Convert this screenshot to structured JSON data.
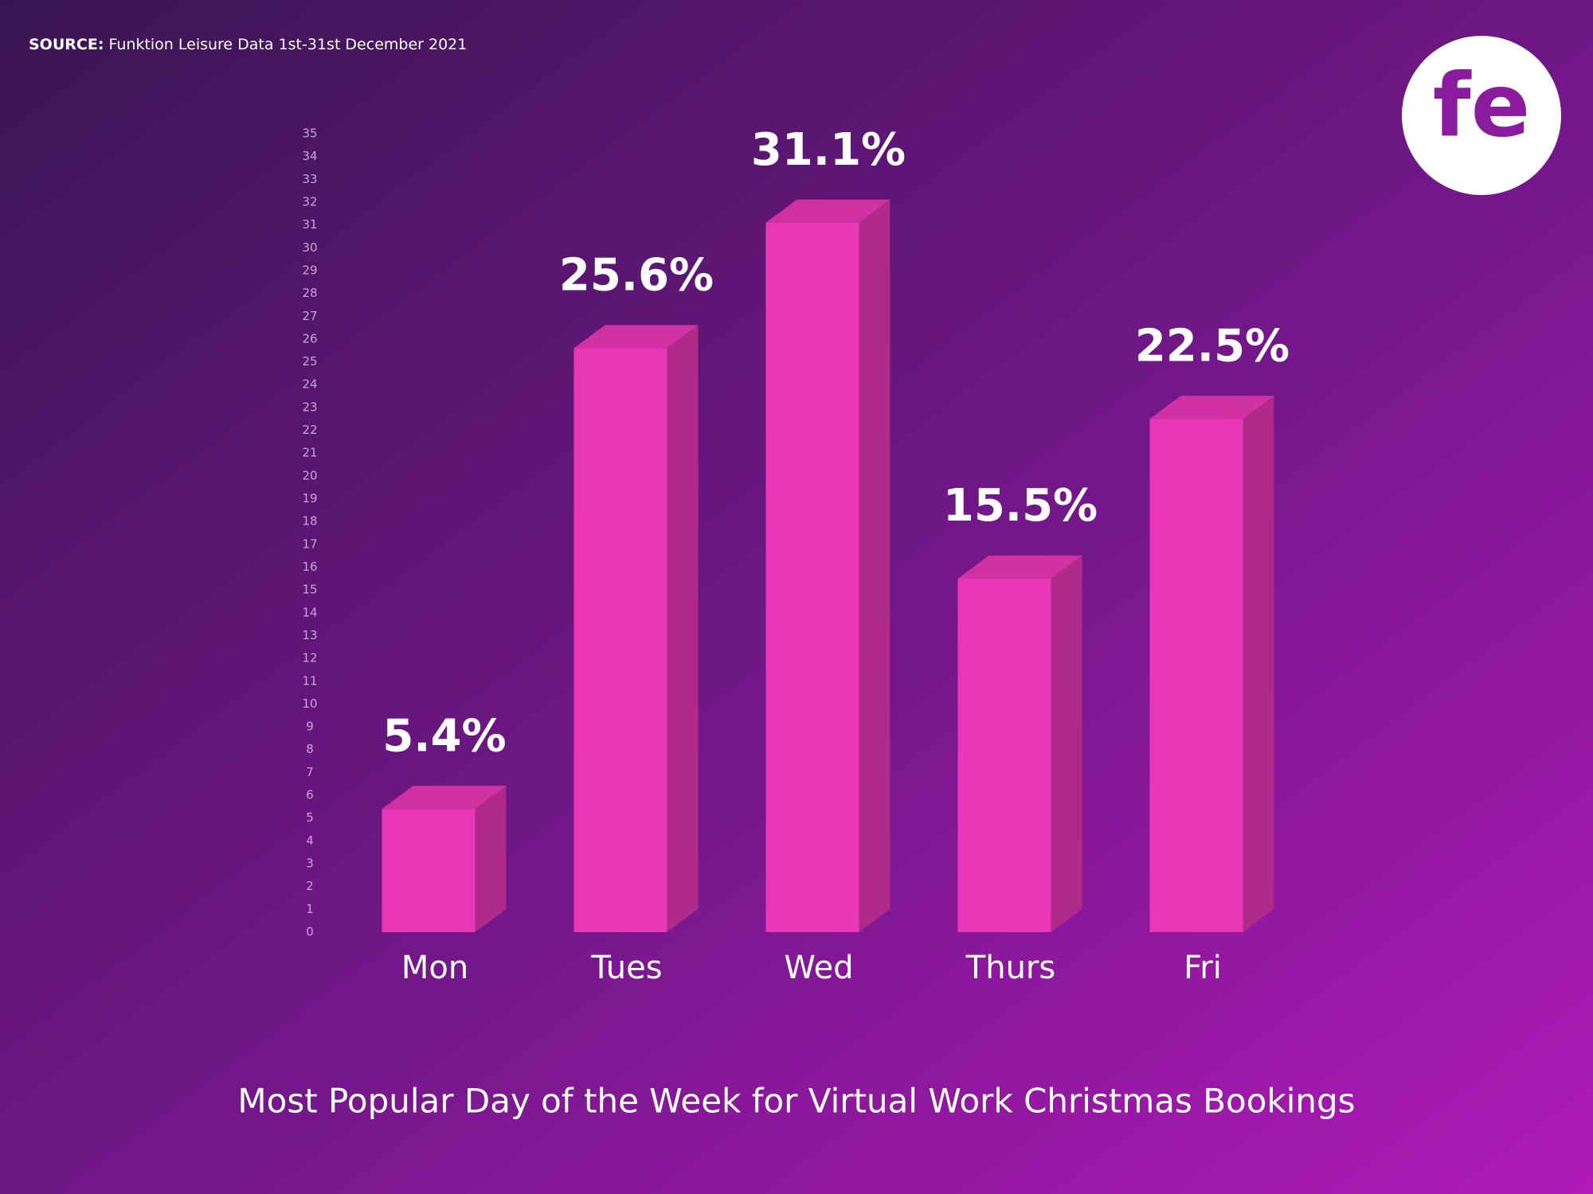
{
  "chart_data": {
    "type": "bar",
    "source_label": "SOURCE:",
    "source": "Funktion Leisure Data 1st-31st December 2021",
    "logo": "fe",
    "title": "Most Popular Day of the Week for Virtual Work Christmas Bookings",
    "categories": [
      "Mon",
      "Tues",
      "Wed",
      "Thurs",
      "Fri"
    ],
    "values": [
      5.4,
      25.6,
      31.1,
      15.5,
      22.5
    ],
    "value_labels": [
      "5.4%",
      "25.6%",
      "31.1%",
      "15.5%",
      "22.5%"
    ],
    "color": "#e838b8",
    "ylim": [
      0,
      35
    ],
    "yticks": [
      0,
      1,
      2,
      3,
      4,
      5,
      6,
      7,
      8,
      9,
      10,
      11,
      12,
      13,
      14,
      15,
      16,
      17,
      18,
      19,
      20,
      21,
      22,
      23,
      24,
      25,
      26,
      27,
      28,
      29,
      30,
      31,
      32,
      33,
      34,
      35
    ],
    "grid": false
  }
}
